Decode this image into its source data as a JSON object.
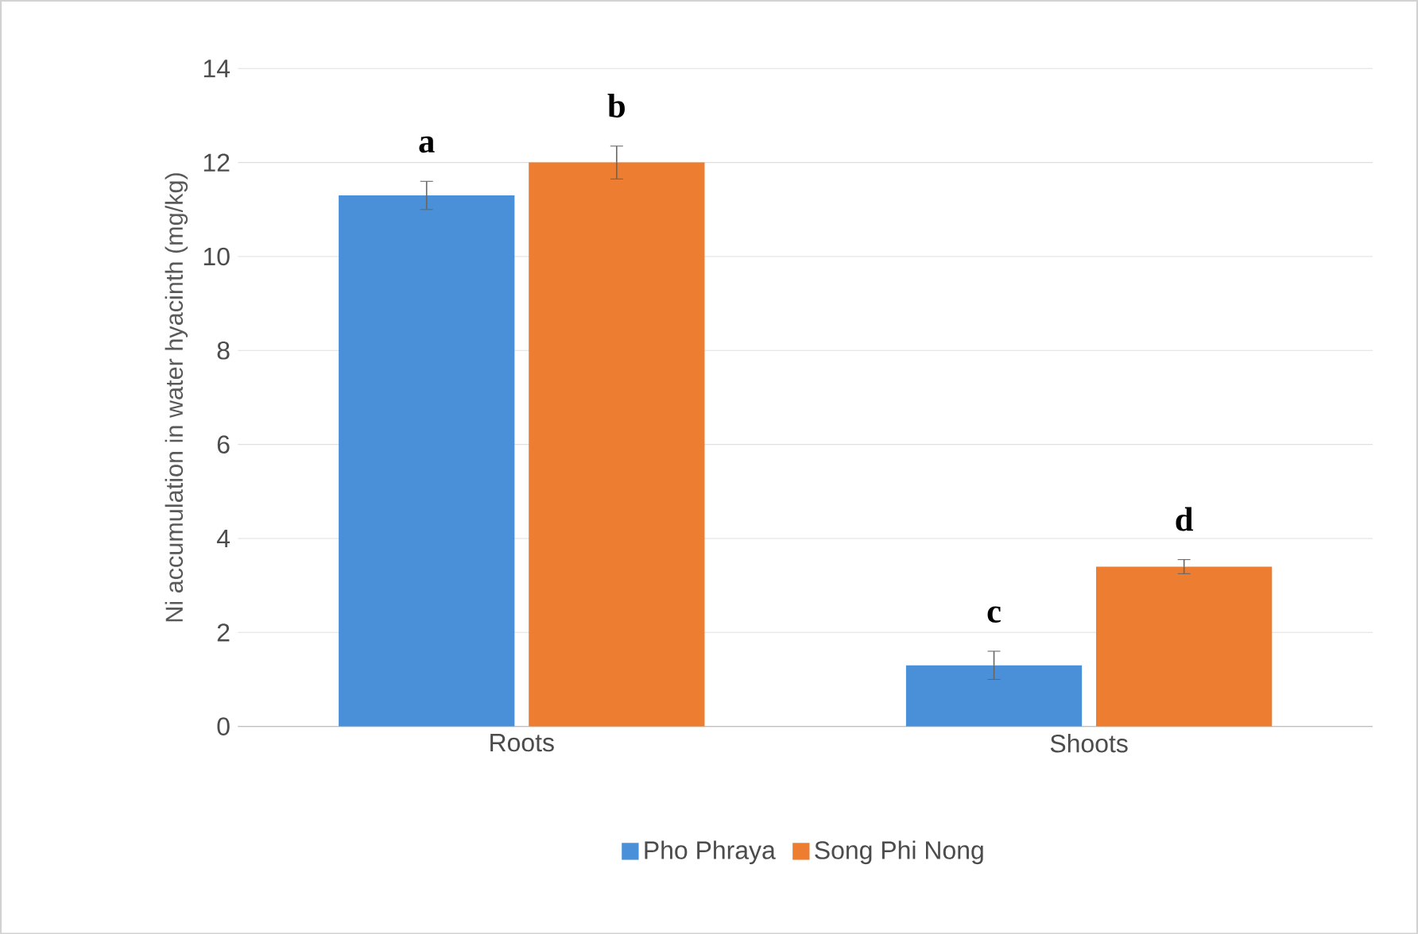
{
  "chart_data": {
    "type": "bar",
    "ylabel": "Ni accumulation in water hyacinth (mg/kg)",
    "categories": [
      "Roots",
      "Shoots"
    ],
    "series": [
      {
        "name": "Pho Phraya",
        "color": "#4a90d9",
        "values": [
          11.3,
          1.3
        ],
        "errors": [
          0.3,
          0.3
        ]
      },
      {
        "name": "Song Phi Nong",
        "color": "#ed7d31",
        "values": [
          12.0,
          3.4
        ],
        "errors": [
          0.35,
          0.15
        ]
      }
    ],
    "annotations": [
      "a",
      "b",
      "c",
      "d"
    ],
    "ylim": [
      0,
      14
    ],
    "yticks": [
      0,
      2,
      4,
      6,
      8,
      10,
      12,
      14
    ],
    "grid": "y",
    "legend": "bottom"
  }
}
